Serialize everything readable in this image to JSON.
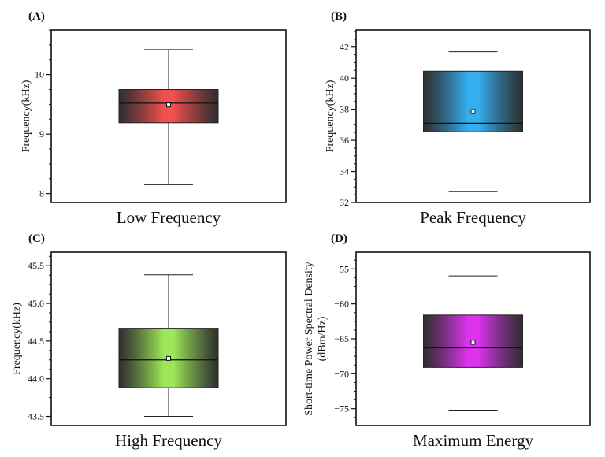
{
  "chart_data": [
    {
      "panel": "(A)",
      "type": "box",
      "title": "",
      "xlabel": "Low Frequency",
      "ylabel": "Frequency(kHz)",
      "ylim": [
        7.85,
        10.75
      ],
      "major_ticks": [
        8,
        9,
        10
      ],
      "tick_labels": [
        "8",
        "9",
        "10"
      ],
      "minor_step": 0.25,
      "stats": {
        "whisker_low": 8.15,
        "q1": 9.19,
        "median": 9.52,
        "mean": 9.49,
        "q3": 9.75,
        "whisker_high": 10.42
      },
      "color": "#f05050"
    },
    {
      "panel": "(B)",
      "type": "box",
      "title": "",
      "xlabel": "Peak Frequency",
      "ylabel": "Frequency(kHz)",
      "ylim": [
        32,
        43.1
      ],
      "major_ticks": [
        32,
        34,
        36,
        38,
        40,
        42
      ],
      "tick_labels": [
        "32",
        "34",
        "36",
        "38",
        "40",
        "42"
      ],
      "minor_step": 0.5,
      "stats": {
        "whisker_low": 32.7,
        "q1": 36.55,
        "median": 37.1,
        "mean": 37.85,
        "q3": 40.45,
        "whisker_high": 41.7
      },
      "color": "#35aef0"
    },
    {
      "panel": "(C)",
      "type": "box",
      "title": "",
      "xlabel": "High Frequency",
      "ylabel": "Frequency(kHz)",
      "ylim": [
        43.38,
        45.68
      ],
      "major_ticks": [
        43.5,
        44.0,
        44.5,
        45.0,
        45.5
      ],
      "tick_labels": [
        "43.5",
        "44.0",
        "44.5",
        "45.0",
        "45.5"
      ],
      "minor_step": 0.125,
      "stats": {
        "whisker_low": 43.5,
        "q1": 43.88,
        "median": 44.25,
        "mean": 44.27,
        "q3": 44.67,
        "whisker_high": 45.38
      },
      "color": "#9ee65a"
    },
    {
      "panel": "(D)",
      "type": "box",
      "title": "",
      "xlabel": "Maximum Energy",
      "ylabel": "Short-time Power Spectral Density (dBm/Hz)",
      "ylabel_lines": [
        "Short-time Power Spectral Density",
        "(dBm/Hz)"
      ],
      "ylim": [
        -77.4,
        -52.6
      ],
      "major_ticks": [
        -75,
        -70,
        -65,
        -60,
        -55
      ],
      "tick_labels": [
        "−75",
        "−70",
        "−65",
        "−60",
        "−55"
      ],
      "minor_step": 1.25,
      "stats": {
        "whisker_low": -75.2,
        "q1": -69.1,
        "median": -66.3,
        "mean": -65.5,
        "q3": -61.6,
        "whisker_high": -56.0
      },
      "color": "#dd33ee"
    }
  ]
}
